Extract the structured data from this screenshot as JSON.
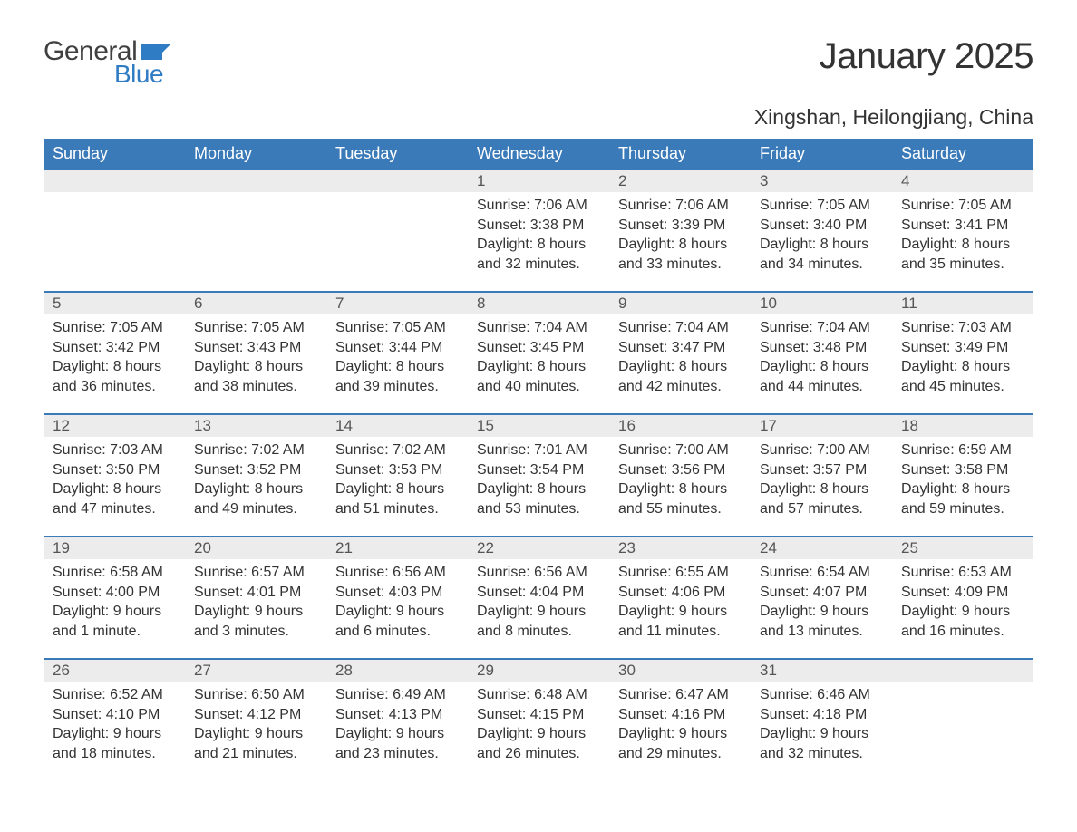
{
  "logo": {
    "text_general": "General",
    "text_blue": "Blue",
    "flag_color": "#2f7cc4"
  },
  "title": "January 2025",
  "location": "Xingshan, Heilongjiang, China",
  "colors": {
    "header_bg": "#3a7ab8",
    "header_text": "#ffffff",
    "daynum_bg": "#ececec",
    "row_border": "#3a7ab8",
    "body_text": "#333333",
    "page_bg": "#ffffff"
  },
  "typography": {
    "title_fontsize": 40,
    "location_fontsize": 23,
    "header_fontsize": 18,
    "daynum_fontsize": 17,
    "cell_fontsize": 16
  },
  "weekdays": [
    "Sunday",
    "Monday",
    "Tuesday",
    "Wednesday",
    "Thursday",
    "Friday",
    "Saturday"
  ],
  "weeks": [
    [
      null,
      null,
      null,
      {
        "n": "1",
        "sunrise": "Sunrise: 7:06 AM",
        "sunset": "Sunset: 3:38 PM",
        "day1": "Daylight: 8 hours",
        "day2": "and 32 minutes."
      },
      {
        "n": "2",
        "sunrise": "Sunrise: 7:06 AM",
        "sunset": "Sunset: 3:39 PM",
        "day1": "Daylight: 8 hours",
        "day2": "and 33 minutes."
      },
      {
        "n": "3",
        "sunrise": "Sunrise: 7:05 AM",
        "sunset": "Sunset: 3:40 PM",
        "day1": "Daylight: 8 hours",
        "day2": "and 34 minutes."
      },
      {
        "n": "4",
        "sunrise": "Sunrise: 7:05 AM",
        "sunset": "Sunset: 3:41 PM",
        "day1": "Daylight: 8 hours",
        "day2": "and 35 minutes."
      }
    ],
    [
      {
        "n": "5",
        "sunrise": "Sunrise: 7:05 AM",
        "sunset": "Sunset: 3:42 PM",
        "day1": "Daylight: 8 hours",
        "day2": "and 36 minutes."
      },
      {
        "n": "6",
        "sunrise": "Sunrise: 7:05 AM",
        "sunset": "Sunset: 3:43 PM",
        "day1": "Daylight: 8 hours",
        "day2": "and 38 minutes."
      },
      {
        "n": "7",
        "sunrise": "Sunrise: 7:05 AM",
        "sunset": "Sunset: 3:44 PM",
        "day1": "Daylight: 8 hours",
        "day2": "and 39 minutes."
      },
      {
        "n": "8",
        "sunrise": "Sunrise: 7:04 AM",
        "sunset": "Sunset: 3:45 PM",
        "day1": "Daylight: 8 hours",
        "day2": "and 40 minutes."
      },
      {
        "n": "9",
        "sunrise": "Sunrise: 7:04 AM",
        "sunset": "Sunset: 3:47 PM",
        "day1": "Daylight: 8 hours",
        "day2": "and 42 minutes."
      },
      {
        "n": "10",
        "sunrise": "Sunrise: 7:04 AM",
        "sunset": "Sunset: 3:48 PM",
        "day1": "Daylight: 8 hours",
        "day2": "and 44 minutes."
      },
      {
        "n": "11",
        "sunrise": "Sunrise: 7:03 AM",
        "sunset": "Sunset: 3:49 PM",
        "day1": "Daylight: 8 hours",
        "day2": "and 45 minutes."
      }
    ],
    [
      {
        "n": "12",
        "sunrise": "Sunrise: 7:03 AM",
        "sunset": "Sunset: 3:50 PM",
        "day1": "Daylight: 8 hours",
        "day2": "and 47 minutes."
      },
      {
        "n": "13",
        "sunrise": "Sunrise: 7:02 AM",
        "sunset": "Sunset: 3:52 PM",
        "day1": "Daylight: 8 hours",
        "day2": "and 49 minutes."
      },
      {
        "n": "14",
        "sunrise": "Sunrise: 7:02 AM",
        "sunset": "Sunset: 3:53 PM",
        "day1": "Daylight: 8 hours",
        "day2": "and 51 minutes."
      },
      {
        "n": "15",
        "sunrise": "Sunrise: 7:01 AM",
        "sunset": "Sunset: 3:54 PM",
        "day1": "Daylight: 8 hours",
        "day2": "and 53 minutes."
      },
      {
        "n": "16",
        "sunrise": "Sunrise: 7:00 AM",
        "sunset": "Sunset: 3:56 PM",
        "day1": "Daylight: 8 hours",
        "day2": "and 55 minutes."
      },
      {
        "n": "17",
        "sunrise": "Sunrise: 7:00 AM",
        "sunset": "Sunset: 3:57 PM",
        "day1": "Daylight: 8 hours",
        "day2": "and 57 minutes."
      },
      {
        "n": "18",
        "sunrise": "Sunrise: 6:59 AM",
        "sunset": "Sunset: 3:58 PM",
        "day1": "Daylight: 8 hours",
        "day2": "and 59 minutes."
      }
    ],
    [
      {
        "n": "19",
        "sunrise": "Sunrise: 6:58 AM",
        "sunset": "Sunset: 4:00 PM",
        "day1": "Daylight: 9 hours",
        "day2": "and 1 minute."
      },
      {
        "n": "20",
        "sunrise": "Sunrise: 6:57 AM",
        "sunset": "Sunset: 4:01 PM",
        "day1": "Daylight: 9 hours",
        "day2": "and 3 minutes."
      },
      {
        "n": "21",
        "sunrise": "Sunrise: 6:56 AM",
        "sunset": "Sunset: 4:03 PM",
        "day1": "Daylight: 9 hours",
        "day2": "and 6 minutes."
      },
      {
        "n": "22",
        "sunrise": "Sunrise: 6:56 AM",
        "sunset": "Sunset: 4:04 PM",
        "day1": "Daylight: 9 hours",
        "day2": "and 8 minutes."
      },
      {
        "n": "23",
        "sunrise": "Sunrise: 6:55 AM",
        "sunset": "Sunset: 4:06 PM",
        "day1": "Daylight: 9 hours",
        "day2": "and 11 minutes."
      },
      {
        "n": "24",
        "sunrise": "Sunrise: 6:54 AM",
        "sunset": "Sunset: 4:07 PM",
        "day1": "Daylight: 9 hours",
        "day2": "and 13 minutes."
      },
      {
        "n": "25",
        "sunrise": "Sunrise: 6:53 AM",
        "sunset": "Sunset: 4:09 PM",
        "day1": "Daylight: 9 hours",
        "day2": "and 16 minutes."
      }
    ],
    [
      {
        "n": "26",
        "sunrise": "Sunrise: 6:52 AM",
        "sunset": "Sunset: 4:10 PM",
        "day1": "Daylight: 9 hours",
        "day2": "and 18 minutes."
      },
      {
        "n": "27",
        "sunrise": "Sunrise: 6:50 AM",
        "sunset": "Sunset: 4:12 PM",
        "day1": "Daylight: 9 hours",
        "day2": "and 21 minutes."
      },
      {
        "n": "28",
        "sunrise": "Sunrise: 6:49 AM",
        "sunset": "Sunset: 4:13 PM",
        "day1": "Daylight: 9 hours",
        "day2": "and 23 minutes."
      },
      {
        "n": "29",
        "sunrise": "Sunrise: 6:48 AM",
        "sunset": "Sunset: 4:15 PM",
        "day1": "Daylight: 9 hours",
        "day2": "and 26 minutes."
      },
      {
        "n": "30",
        "sunrise": "Sunrise: 6:47 AM",
        "sunset": "Sunset: 4:16 PM",
        "day1": "Daylight: 9 hours",
        "day2": "and 29 minutes."
      },
      {
        "n": "31",
        "sunrise": "Sunrise: 6:46 AM",
        "sunset": "Sunset: 4:18 PM",
        "day1": "Daylight: 9 hours",
        "day2": "and 32 minutes."
      },
      null
    ]
  ]
}
